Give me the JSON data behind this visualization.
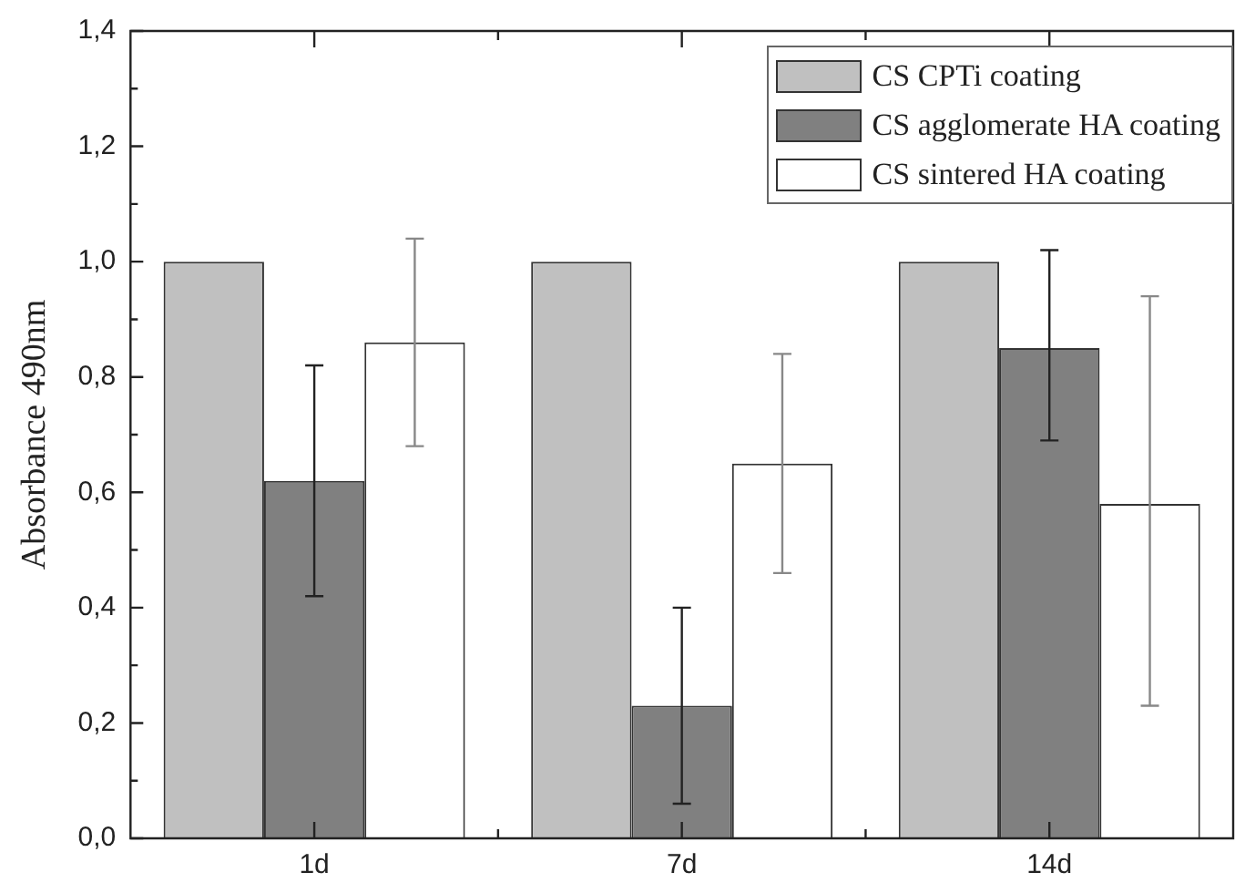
{
  "chart_data": {
    "type": "bar",
    "ylabel": "Absorbance 490nm",
    "categories": [
      "1d",
      "7d",
      "14d"
    ],
    "series": [
      {
        "name": "CS CPTi coating",
        "color": "#c0c0c0",
        "values": [
          1.0,
          1.0,
          1.0
        ]
      },
      {
        "name": "CS agglomerate HA coating",
        "color": "#808080",
        "values": [
          0.62,
          0.23,
          0.85
        ],
        "errors": [
          [
            0.42,
            0.82
          ],
          [
            0.06,
            0.4
          ],
          [
            0.69,
            1.02
          ]
        ]
      },
      {
        "name": "CS sintered HA coating",
        "color": "#ffffff",
        "values": [
          0.86,
          0.65,
          0.58
        ],
        "errors": [
          [
            0.68,
            1.04
          ],
          [
            0.46,
            0.84
          ],
          [
            0.23,
            0.94
          ]
        ]
      }
    ],
    "ylim": [
      0,
      1.4
    ],
    "yticks": [
      {
        "value": 0,
        "label": "0,0"
      },
      {
        "value": 0.1,
        "label": null
      },
      {
        "value": 0.2,
        "label": "0,2"
      },
      {
        "value": 0.3,
        "label": null
      },
      {
        "value": 0.4,
        "label": "0,4"
      },
      {
        "value": 0.5,
        "label": null
      },
      {
        "value": 0.6,
        "label": "0,6"
      },
      {
        "value": 0.7,
        "label": null
      },
      {
        "value": 0.8,
        "label": "0,8"
      },
      {
        "value": 0.9,
        "label": null
      },
      {
        "value": 1.0,
        "label": "1,0"
      },
      {
        "value": 1.1,
        "label": null
      },
      {
        "value": 1.2,
        "label": "1,2"
      },
      {
        "value": 1.3,
        "label": null
      },
      {
        "value": 1.4,
        "label": "1,4"
      }
    ],
    "grid": false,
    "legend": "top right"
  }
}
